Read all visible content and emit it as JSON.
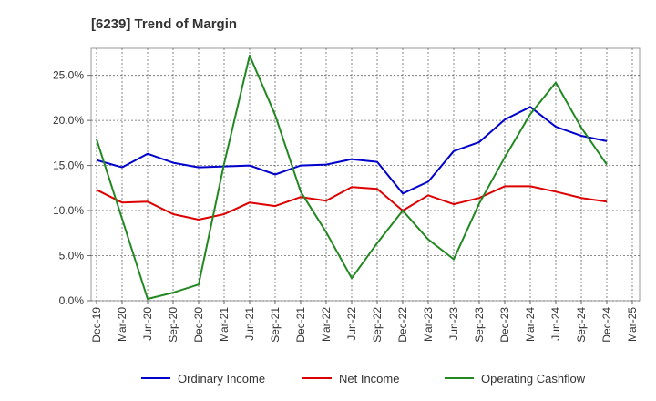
{
  "chart_data": {
    "type": "line",
    "title": "[6239]  Trend of Margin",
    "xlabel": "",
    "ylabel": "",
    "categories": [
      "Dec-19",
      "Mar-20",
      "Jun-20",
      "Sep-20",
      "Dec-20",
      "Mar-21",
      "Jun-21",
      "Sep-21",
      "Dec-21",
      "Mar-22",
      "Jun-22",
      "Sep-22",
      "Dec-22",
      "Mar-23",
      "Jun-23",
      "Sep-23",
      "Dec-23",
      "Mar-24",
      "Jun-24",
      "Sep-24",
      "Dec-24",
      "Mar-25"
    ],
    "ylim": [
      0,
      28
    ],
    "yticks": [
      0,
      5,
      10,
      15,
      20,
      25
    ],
    "ytick_labels": [
      "0.0%",
      "5.0%",
      "10.0%",
      "15.0%",
      "20.0%",
      "25.0%"
    ],
    "grid": true,
    "legend_position": "bottom",
    "series": [
      {
        "name": "Ordinary Income",
        "color": "#0000cc",
        "values": [
          15.6,
          14.8,
          16.3,
          15.3,
          14.8,
          14.9,
          15.0,
          14.0,
          15.0,
          15.1,
          15.7,
          15.4,
          11.9,
          13.2,
          16.6,
          17.6,
          20.1,
          21.5,
          19.3,
          18.3,
          17.7,
          null
        ]
      },
      {
        "name": "Net Income",
        "color": "#dd0000",
        "values": [
          12.3,
          10.9,
          11.0,
          9.6,
          9.0,
          9.6,
          10.9,
          10.5,
          11.5,
          11.1,
          12.6,
          12.4,
          10.0,
          11.7,
          10.7,
          11.4,
          12.7,
          12.7,
          12.1,
          11.4,
          11.0,
          null
        ]
      },
      {
        "name": "Operating Cashflow",
        "color": "#228822",
        "values": [
          17.9,
          9.1,
          0.2,
          0.9,
          1.8,
          15.2,
          27.2,
          20.6,
          12.1,
          7.6,
          2.5,
          6.4,
          10.0,
          6.8,
          4.6,
          10.8,
          15.9,
          20.7,
          24.2,
          19.2,
          15.1,
          null
        ]
      }
    ]
  }
}
